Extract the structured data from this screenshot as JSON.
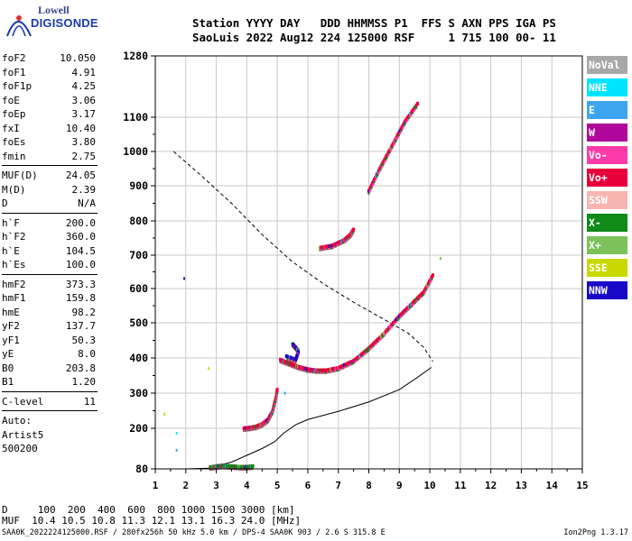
{
  "logo": {
    "line1": "Lowell",
    "line2": "DIGISONDE"
  },
  "header": {
    "line1": "Station YYYY DAY   DDD HHMMSS P1  FFS S AXN PPS IGA PS",
    "line2": "SaoLuis 2022 Aug12 224 125000 RSF     1 715 100 00- 11"
  },
  "params": {
    "group1": [
      {
        "name": "foF2",
        "value": "10.050"
      },
      {
        "name": "foF1",
        "value": "4.91"
      },
      {
        "name": "foF1p",
        "value": "4.25"
      },
      {
        "name": "foE",
        "value": "3.06"
      },
      {
        "name": "foEp",
        "value": "3.17"
      },
      {
        "name": "fxI",
        "value": "10.40"
      },
      {
        "name": "foEs",
        "value": "3.80"
      },
      {
        "name": "fmin",
        "value": "2.75"
      }
    ],
    "group2": [
      {
        "name": "MUF(D)",
        "value": "24.05"
      },
      {
        "name": "M(D)",
        "value": "2.39"
      },
      {
        "name": "D",
        "value": "N/A"
      }
    ],
    "group3": [
      {
        "name": "h`F",
        "value": "200.0"
      },
      {
        "name": "h`F2",
        "value": "360.0"
      },
      {
        "name": "h`E",
        "value": "104.5"
      },
      {
        "name": "h`Es",
        "value": "100.0"
      }
    ],
    "group4": [
      {
        "name": "hmF2",
        "value": "373.3"
      },
      {
        "name": "hmF1",
        "value": "159.8"
      },
      {
        "name": "hmE",
        "value": "98.2"
      },
      {
        "name": "yF2",
        "value": "137.7"
      },
      {
        "name": "yF1",
        "value": "50.3"
      },
      {
        "name": "yE",
        "value": "8.0"
      },
      {
        "name": "B0",
        "value": "203.8"
      },
      {
        "name": "B1",
        "value": "1.20"
      }
    ],
    "group5": [
      {
        "name": "C-level",
        "value": "11"
      }
    ],
    "auto_lines": [
      "Auto:",
      "Artist5",
      "500200"
    ]
  },
  "legend": [
    {
      "label": "NoVal",
      "color": "#a8a8a8"
    },
    {
      "label": "NNE",
      "color": "#00e5ff"
    },
    {
      "label": "E",
      "color": "#3da5f0"
    },
    {
      "label": "W",
      "color": "#b0089a"
    },
    {
      "label": "Vo-",
      "color": "#ff3aa8"
    },
    {
      "label": "Vo+",
      "color": "#e8003a"
    },
    {
      "label": "SSW",
      "color": "#f8b4b0"
    },
    {
      "label": "X-",
      "color": "#108a18"
    },
    {
      "label": "X+",
      "color": "#7cc25a"
    },
    {
      "label": "SSE",
      "color": "#c8d800"
    },
    {
      "label": "NNW",
      "color": "#1808c8"
    }
  ],
  "bottom": {
    "d_line": "D     100  200  400  600  800 1000 1500 3000 [km]",
    "muf_line": "MUF  10.4 10.5 10.8 11.3 12.1 13.1 16.3 24.0 [MHz]",
    "footer": "SAA0K_2022224125000.RSF / 280fx256h 50 kHz 5.0 km / DPS-4 SAA0K 903 / 2.6 S 315.8 E",
    "version": "Ion2Png 1.3.17"
  },
  "chart_data": {
    "type": "scatter",
    "xlim": [
      1,
      15
    ],
    "ylim": [
      80,
      1280
    ],
    "x_ticks": [
      "1",
      "2",
      "3",
      "4",
      "5",
      "6",
      "7",
      "8",
      "9",
      "10",
      "11",
      "12",
      "13",
      "14",
      "15"
    ],
    "y_ticks": [
      "80",
      "200",
      "300",
      "400",
      "500",
      "600",
      "700",
      "800",
      "900",
      "1000",
      "1100",
      "1280"
    ],
    "y_tick_values": [
      80,
      200,
      300,
      400,
      500,
      600,
      700,
      800,
      900,
      1000,
      1100,
      1280
    ],
    "grid": true,
    "echo_traces": [
      {
        "name": "E trace",
        "color": "#108a18",
        "points": [
          [
            2.8,
            85
          ],
          [
            3.0,
            88
          ],
          [
            3.2,
            90
          ],
          [
            3.5,
            88
          ],
          [
            3.8,
            86
          ],
          [
            4.0,
            86
          ],
          [
            4.2,
            88
          ]
        ]
      },
      {
        "name": "F1 trace",
        "color": "#e8003a",
        "points": [
          [
            3.9,
            200
          ],
          [
            4.1,
            202
          ],
          [
            4.3,
            205
          ],
          [
            4.5,
            212
          ],
          [
            4.7,
            225
          ],
          [
            4.85,
            250
          ],
          [
            4.95,
            285
          ],
          [
            5.0,
            310
          ]
        ]
      },
      {
        "name": "F2 trace",
        "color": "#e8003a",
        "points": [
          [
            5.1,
            395
          ],
          [
            5.4,
            385
          ],
          [
            5.7,
            375
          ],
          [
            6.0,
            368
          ],
          [
            6.3,
            365
          ],
          [
            6.6,
            365
          ],
          [
            7.0,
            372
          ],
          [
            7.5,
            392
          ],
          [
            8.0,
            428
          ],
          [
            8.5,
            470
          ],
          [
            9.0,
            520
          ],
          [
            9.4,
            555
          ],
          [
            9.8,
            590
          ],
          [
            10.1,
            640
          ]
        ]
      },
      {
        "name": "Spread echoes",
        "color": "#1808c8",
        "points": [
          [
            5.5,
            440
          ],
          [
            5.7,
            420
          ],
          [
            5.6,
            395
          ],
          [
            5.3,
            405
          ]
        ]
      },
      {
        "name": "F2 2nd hop",
        "color": "#e8003a",
        "points": [
          [
            6.4,
            722
          ],
          [
            6.8,
            728
          ],
          [
            7.2,
            745
          ],
          [
            7.4,
            760
          ],
          [
            7.5,
            775
          ]
        ]
      },
      {
        "name": "F2 3rd hop",
        "color": "#e8003a",
        "points": [
          [
            8.0,
            885
          ],
          [
            8.3,
            940
          ],
          [
            8.6,
            990
          ],
          [
            8.9,
            1040
          ],
          [
            9.2,
            1090
          ],
          [
            9.6,
            1140
          ]
        ]
      }
    ],
    "noise_points": [
      {
        "x": 1.95,
        "y": 630,
        "color": "#1808c8"
      },
      {
        "x": 2.75,
        "y": 370,
        "color": "#c8d800"
      },
      {
        "x": 1.7,
        "y": 185,
        "color": "#00e5ff"
      },
      {
        "x": 1.7,
        "y": 135,
        "color": "#3da5f0"
      },
      {
        "x": 1.3,
        "y": 240,
        "color": "#c8d800"
      },
      {
        "x": 10.35,
        "y": 690,
        "color": "#7cc25a"
      },
      {
        "x": 5.25,
        "y": 300,
        "color": "#3da5f0"
      }
    ],
    "profile_curve": [
      [
        1.0,
        78
      ],
      [
        2.0,
        80
      ],
      [
        2.8,
        82
      ],
      [
        3.06,
        90
      ],
      [
        3.5,
        100
      ],
      [
        4.0,
        120
      ],
      [
        4.5,
        140
      ],
      [
        4.91,
        160
      ],
      [
        5.2,
        185
      ],
      [
        5.6,
        210
      ],
      [
        6.0,
        225
      ],
      [
        7.0,
        248
      ],
      [
        8.0,
        275
      ],
      [
        9.0,
        310
      ],
      [
        9.6,
        345
      ],
      [
        10.05,
        373
      ]
    ],
    "virtual_height_model": [
      [
        1.6,
        1000
      ],
      [
        2.5,
        930
      ],
      [
        3.5,
        850
      ],
      [
        4.5,
        760
      ],
      [
        5.5,
        680
      ],
      [
        6.5,
        615
      ],
      [
        7.5,
        560
      ],
      [
        8.5,
        510
      ],
      [
        9.3,
        470
      ],
      [
        9.8,
        430
      ],
      [
        10.1,
        390
      ]
    ]
  }
}
